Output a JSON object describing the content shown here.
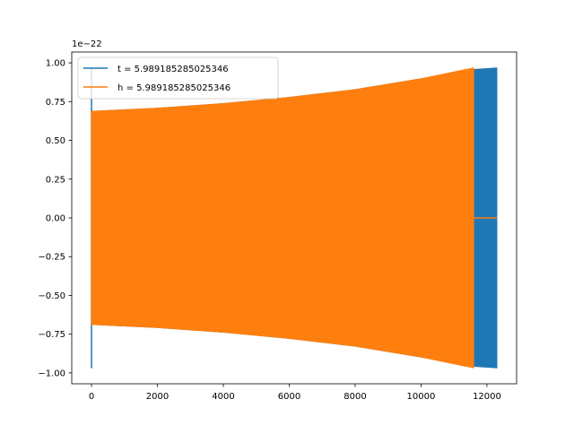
{
  "chart_data": {
    "type": "line",
    "title": "",
    "xlabel": "",
    "ylabel": "",
    "offset_text": "1e−22",
    "xlim": [
      -600,
      12900
    ],
    "ylim": [
      -1.07,
      1.07
    ],
    "x_ticks": [
      {
        "value": 0,
        "label": "0"
      },
      {
        "value": 2000,
        "label": "2000"
      },
      {
        "value": 4000,
        "label": "4000"
      },
      {
        "value": 6000,
        "label": "6000"
      },
      {
        "value": 8000,
        "label": "8000"
      },
      {
        "value": 10000,
        "label": "10000"
      },
      {
        "value": 12000,
        "label": "12000"
      }
    ],
    "y_ticks": [
      {
        "value": 1.0,
        "label": "1.00"
      },
      {
        "value": 0.75,
        "label": "0.75"
      },
      {
        "value": 0.5,
        "label": "0.50"
      },
      {
        "value": 0.25,
        "label": "0.25"
      },
      {
        "value": 0.0,
        "label": "0.00"
      },
      {
        "value": -0.25,
        "label": "−0.25"
      },
      {
        "value": -0.5,
        "label": "−0.50"
      },
      {
        "value": -0.75,
        "label": "−0.75"
      },
      {
        "value": -1.0,
        "label": "−1.00"
      }
    ],
    "grid": false,
    "legend_position": "top-left",
    "series": [
      {
        "name": "t = 5.989185285025346",
        "color": "#1f77b4",
        "envelope": {
          "x": [
            0,
            2000,
            4000,
            6000,
            8000,
            10000,
            11600,
            12300
          ],
          "upper": [
            0.69,
            0.71,
            0.74,
            0.78,
            0.83,
            0.9,
            0.96,
            0.97
          ],
          "lower": [
            -0.69,
            -0.71,
            -0.74,
            -0.78,
            -0.83,
            -0.9,
            -0.96,
            -0.97
          ]
        },
        "start_spike": [
          0.97,
          -0.97
        ],
        "end_x": 12300
      },
      {
        "name": "h = 5.989185285025346",
        "color": "#ff7f0e",
        "envelope": {
          "x": [
            0,
            2000,
            4000,
            6000,
            8000,
            10000,
            11600
          ],
          "upper": [
            0.69,
            0.71,
            0.74,
            0.78,
            0.83,
            0.9,
            0.97
          ],
          "lower": [
            -0.69,
            -0.71,
            -0.74,
            -0.78,
            -0.83,
            -0.9,
            -0.97
          ]
        },
        "flat_after": {
          "x_start": 11600,
          "x_end": 12300,
          "y": 0.0
        }
      }
    ]
  }
}
